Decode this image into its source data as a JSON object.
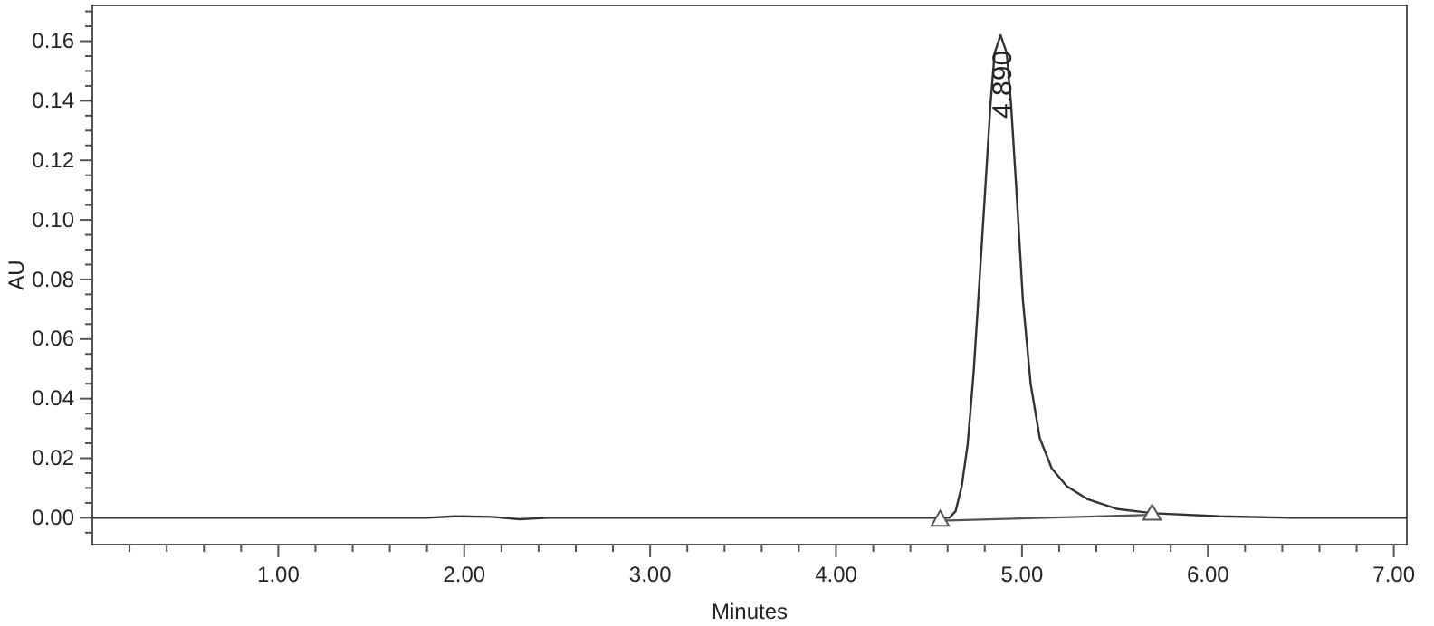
{
  "chart_data": {
    "type": "line",
    "xlabel": "Minutes",
    "ylabel": "AU",
    "xlim": [
      0,
      7.07
    ],
    "ylim": [
      -0.009,
      0.172
    ],
    "xticks": [
      {
        "value": 0.2,
        "label": null
      },
      {
        "value": 0.4,
        "label": null
      },
      {
        "value": 0.6,
        "label": null
      },
      {
        "value": 0.8,
        "label": null
      },
      {
        "value": 1,
        "label": "1.00"
      },
      {
        "value": 1.2,
        "label": null
      },
      {
        "value": 1.4,
        "label": null
      },
      {
        "value": 1.6,
        "label": null
      },
      {
        "value": 1.8,
        "label": null
      },
      {
        "value": 2,
        "label": "2.00"
      },
      {
        "value": 2.2,
        "label": null
      },
      {
        "value": 2.4,
        "label": null
      },
      {
        "value": 2.6,
        "label": null
      },
      {
        "value": 2.8,
        "label": null
      },
      {
        "value": 3,
        "label": "3.00"
      },
      {
        "value": 3.2,
        "label": null
      },
      {
        "value": 3.4,
        "label": null
      },
      {
        "value": 3.6,
        "label": null
      },
      {
        "value": 3.8,
        "label": null
      },
      {
        "value": 4,
        "label": "4.00"
      },
      {
        "value": 4.2,
        "label": null
      },
      {
        "value": 4.4,
        "label": null
      },
      {
        "value": 4.6,
        "label": null
      },
      {
        "value": 4.8,
        "label": null
      },
      {
        "value": 5,
        "label": "5.00"
      },
      {
        "value": 5.2,
        "label": null
      },
      {
        "value": 5.4,
        "label": null
      },
      {
        "value": 5.6,
        "label": null
      },
      {
        "value": 5.8,
        "label": null
      },
      {
        "value": 6,
        "label": "6.00"
      },
      {
        "value": 6.2,
        "label": null
      },
      {
        "value": 6.4,
        "label": null
      },
      {
        "value": 6.6,
        "label": null
      },
      {
        "value": 6.8,
        "label": null
      },
      {
        "value": 7,
        "label": "7.00"
      }
    ],
    "yticks": [
      {
        "value": -0.005,
        "label": null
      },
      {
        "value": 0,
        "label": "0.00"
      },
      {
        "value": 0.005,
        "label": null
      },
      {
        "value": 0.01,
        "label": null
      },
      {
        "value": 0.015,
        "label": null
      },
      {
        "value": 0.02,
        "label": "0.02"
      },
      {
        "value": 0.025,
        "label": null
      },
      {
        "value": 0.03,
        "label": null
      },
      {
        "value": 0.035,
        "label": null
      },
      {
        "value": 0.04,
        "label": "0.04"
      },
      {
        "value": 0.045,
        "label": null
      },
      {
        "value": 0.05,
        "label": null
      },
      {
        "value": 0.055,
        "label": null
      },
      {
        "value": 0.06,
        "label": "0.06"
      },
      {
        "value": 0.065,
        "label": null
      },
      {
        "value": 0.07,
        "label": null
      },
      {
        "value": 0.075,
        "label": null
      },
      {
        "value": 0.08,
        "label": "0.08"
      },
      {
        "value": 0.085,
        "label": null
      },
      {
        "value": 0.09,
        "label": null
      },
      {
        "value": 0.095,
        "label": null
      },
      {
        "value": 0.1,
        "label": "0.10"
      },
      {
        "value": 0.105,
        "label": null
      },
      {
        "value": 0.11,
        "label": null
      },
      {
        "value": 0.115,
        "label": null
      },
      {
        "value": 0.12,
        "label": "0.12"
      },
      {
        "value": 0.125,
        "label": null
      },
      {
        "value": 0.13,
        "label": null
      },
      {
        "value": 0.135,
        "label": null
      },
      {
        "value": 0.14,
        "label": "0.14"
      },
      {
        "value": 0.145,
        "label": null
      },
      {
        "value": 0.15,
        "label": null
      },
      {
        "value": 0.155,
        "label": null
      },
      {
        "value": 0.16,
        "label": "0.16"
      },
      {
        "value": 0.165,
        "label": null
      },
      {
        "value": 0.17,
        "label": null
      }
    ],
    "series": [
      {
        "color": "#333333",
        "marker": "none",
        "x": [
          0,
          1,
          1.8,
          1.95,
          2.15,
          2.3,
          2.45,
          4,
          4.5,
          4.61,
          4.643,
          4.676,
          4.708,
          4.74,
          4.773,
          4.805,
          4.831,
          4.853,
          4.885,
          4.918,
          4.941,
          4.973,
          5.005,
          5.047,
          5.096,
          5.16,
          5.241,
          5.354,
          5.515,
          5.709,
          6.064,
          6.451,
          7.07
        ],
        "values": [
          0,
          0,
          0,
          0.0005,
          0.0003,
          -0.0005,
          0,
          0,
          0,
          0,
          0.0022,
          0.0106,
          0.0247,
          0.0488,
          0.081,
          0.113,
          0.139,
          0.156,
          0.162,
          0.156,
          0.139,
          0.107,
          0.073,
          0.0448,
          0.0267,
          0.0166,
          0.0106,
          0.0062,
          0.0029,
          0.0015,
          0.0005,
          0,
          0
        ]
      },
      {
        "color": "#555555",
        "marker": "triangle",
        "x": [
          4.56,
          5.7
        ],
        "values": [
          -0.001,
          0.001
        ]
      }
    ],
    "annotations": [
      "4.890"
    ]
  }
}
